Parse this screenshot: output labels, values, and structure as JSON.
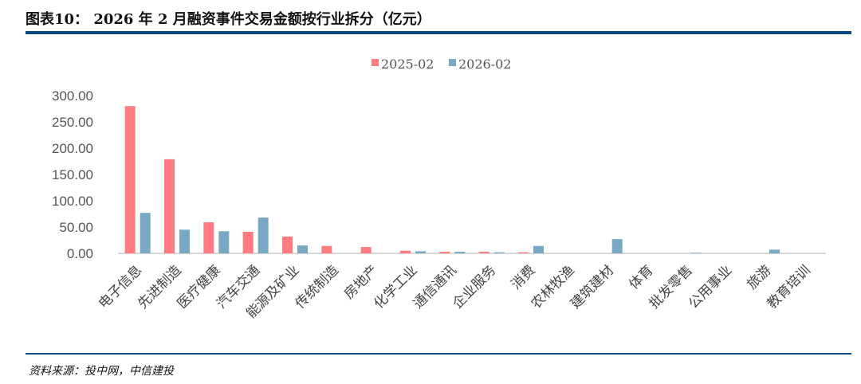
{
  "title": "图表10： 2026 年 2 月融资事件交易金额按行业拆分（亿元）",
  "source": "资料来源：投中网，中信建投",
  "colors": {
    "s2025": "#FF7C80",
    "s2026": "#78A8C4"
  },
  "chart_data": {
    "type": "bar",
    "title": "2026 年 2 月融资事件交易金额按行业拆分（亿元）",
    "xlabel": "",
    "ylabel": "",
    "ylim": [
      0,
      300
    ],
    "yticks": [
      "0.00",
      "50.00",
      "100.00",
      "150.00",
      "200.00",
      "250.00",
      "300.00"
    ],
    "legend_position": "top-center",
    "grid": false,
    "categories": [
      "电子信息",
      "先进制造",
      "医疗健康",
      "汽车交通",
      "能源及矿业",
      "传统制造",
      "房地产",
      "化学工业",
      "通信通讯",
      "企业服务",
      "消费",
      "农林牧渔",
      "建筑建材",
      "体育",
      "批发零售",
      "公用事业",
      "旅游",
      "教育培训"
    ],
    "series": [
      {
        "name": "2025-02",
        "values": [
          280,
          179,
          59,
          41,
          32,
          14,
          12,
          5,
          3,
          3,
          2,
          0,
          0,
          0,
          0,
          0,
          0,
          0
        ]
      },
      {
        "name": "2026-02",
        "values": [
          77,
          45,
          42,
          68,
          15,
          0,
          0,
          4,
          3,
          2,
          14,
          0,
          27,
          0,
          1,
          0,
          7,
          0
        ]
      }
    ]
  }
}
